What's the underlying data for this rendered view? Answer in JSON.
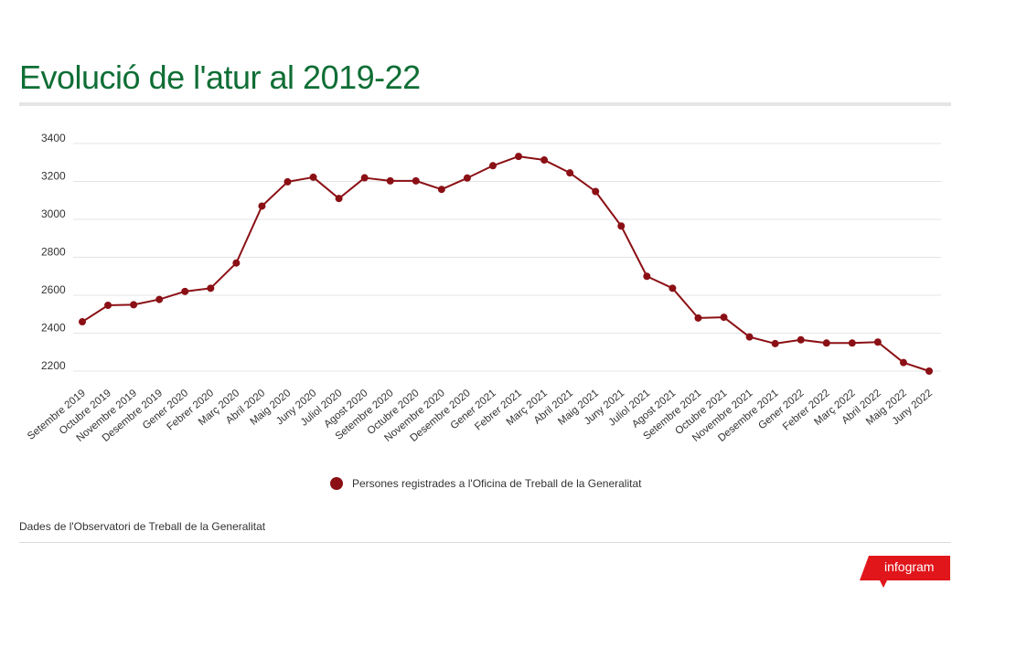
{
  "title": "Evolució de l'atur al 2019-22",
  "legend_label": "Persones registrades a l'Oficina de Treball de la Generalitat",
  "source": "Dades de l'Observatori de Treball de la Generalitat",
  "brand": "infogram",
  "colors": {
    "title": "#0f6e35",
    "series": "#8b1015",
    "brand": "#e0161b",
    "grid": "#e4e4e4"
  },
  "chart_data": {
    "type": "line",
    "title": "Evolució de l'atur al 2019-22",
    "xlabel": "",
    "ylabel": "",
    "ylim": [
      2200,
      3400
    ],
    "yticks": [
      2200,
      2400,
      2600,
      2800,
      3000,
      3200,
      3400
    ],
    "grid": true,
    "legend_position": "bottom",
    "categories": [
      "Setembre 2019",
      "Octubre 2019",
      "Novembre 2019",
      "Desembre 2019",
      "Gener 2020",
      "Febrer 2020",
      "Març 2020",
      "Abril 2020",
      "Maig 2020",
      "Juny 2020",
      "Juliol 2020",
      "Agost 2020",
      "Setembre 2020",
      "Octubre 2020",
      "Novembre 2020",
      "Desembre 2020",
      "Gener 2021",
      "Febrer 2021",
      "Març 2021",
      "Abril 2021",
      "Maig 2021",
      "Juny 2021",
      "Juliol 2021",
      "Agost 2021",
      "Setembre 2021",
      "Octubre 2021",
      "Novembre 2021",
      "Desembre 2021",
      "Gener 2022",
      "Febrer 2022",
      "Març 2022",
      "Abril 2022",
      "Maig 2022",
      "Juny 2022"
    ],
    "series": [
      {
        "name": "Persones registrades a l'Oficina de Treball de la Generalitat",
        "values": [
          2460,
          2547,
          2550,
          2578,
          2620,
          2637,
          2770,
          3070,
          3198,
          3222,
          3110,
          3219,
          3203,
          3203,
          3158,
          3218,
          3283,
          3332,
          3313,
          3245,
          3147,
          2965,
          2700,
          2637,
          2480,
          2484,
          2380,
          2345,
          2365,
          2348,
          2348,
          2353,
          2245,
          2200
        ]
      }
    ]
  }
}
